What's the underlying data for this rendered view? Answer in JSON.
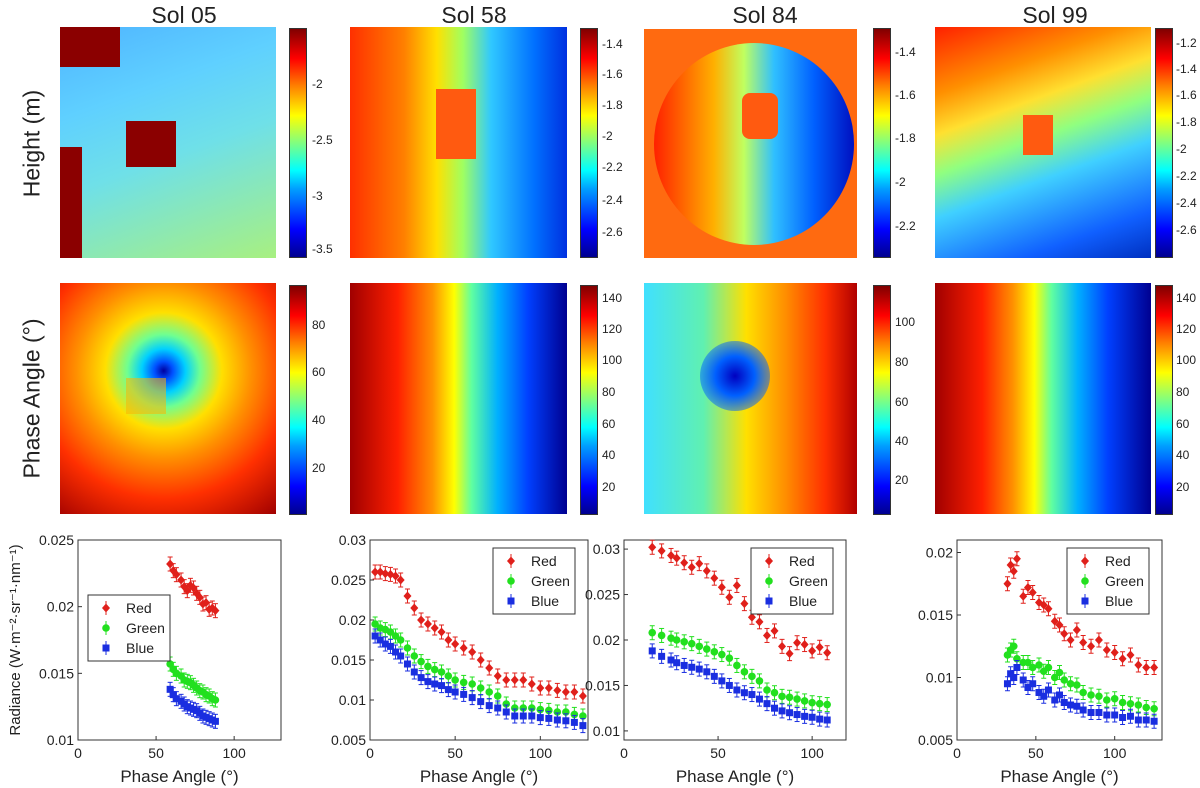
{
  "columns": [
    {
      "title": "Sol 05",
      "height_ticks": [
        "-2",
        "-2.5",
        "-3",
        "-3.5"
      ],
      "phase_ticks": [
        "80",
        "60",
        "40",
        "20"
      ]
    },
    {
      "title": "Sol 58",
      "height_ticks": [
        "-1.4",
        "-1.6",
        "-1.8",
        "-2",
        "-2.2",
        "-2.4",
        "-2.6"
      ],
      "phase_ticks": [
        "140",
        "120",
        "100",
        "80",
        "60",
        "40",
        "20"
      ]
    },
    {
      "title": "Sol 84",
      "height_ticks": [
        "-1.4",
        "-1.6",
        "-1.8",
        "-2",
        "-2.2"
      ],
      "phase_ticks": [
        "100",
        "80",
        "60",
        "40",
        "20"
      ]
    },
    {
      "title": "Sol 99",
      "height_ticks": [
        "-1.2",
        "-1.4",
        "-1.6",
        "-1.8",
        "-2",
        "-2.2",
        "-2.4",
        "-2.6"
      ],
      "phase_ticks": [
        "140",
        "120",
        "100",
        "80",
        "60",
        "40",
        "20"
      ]
    }
  ],
  "row_labels": {
    "height": "Height (m)",
    "phase": "Phase Angle (°)"
  },
  "colors": {
    "red": "#e0201b",
    "green": "#22e01e",
    "blue": "#1a2ee0"
  },
  "chart_data": [
    {
      "type": "scatter",
      "title": "Sol 05",
      "xlabel": "Phase Angle (°)",
      "ylabel": "Radiance (W·m⁻²·sr⁻¹·nm⁻¹)",
      "xlim": [
        0,
        130
      ],
      "ylim": [
        0.01,
        0.025
      ],
      "xticks": [
        0,
        50,
        100
      ],
      "yticks": [
        0.01,
        0.015,
        0.02,
        0.025
      ],
      "ytick_labels": [
        "0.01",
        "0.015",
        "0.02",
        "0.025"
      ],
      "legend_pos": "middle-left",
      "series": [
        {
          "name": "Red",
          "x": [
            59,
            61,
            63,
            66,
            68,
            70,
            72,
            74,
            76,
            78,
            80,
            82,
            84,
            86,
            88
          ],
          "y": [
            0.0232,
            0.0227,
            0.0224,
            0.022,
            0.0215,
            0.0212,
            0.0216,
            0.0214,
            0.021,
            0.0207,
            0.0202,
            0.0203,
            0.0198,
            0.0199,
            0.0197
          ]
        },
        {
          "name": "Green",
          "x": [
            59,
            61,
            63,
            66,
            68,
            70,
            72,
            74,
            76,
            78,
            80,
            82,
            84,
            86,
            88
          ],
          "y": [
            0.0157,
            0.0153,
            0.015,
            0.0148,
            0.0145,
            0.0144,
            0.0143,
            0.0141,
            0.0139,
            0.0137,
            0.0136,
            0.0134,
            0.0133,
            0.0131,
            0.013
          ]
        },
        {
          "name": "Blue",
          "x": [
            59,
            61,
            63,
            66,
            68,
            70,
            72,
            74,
            76,
            78,
            80,
            82,
            84,
            86,
            88
          ],
          "y": [
            0.0138,
            0.0134,
            0.0131,
            0.0129,
            0.0127,
            0.0125,
            0.0124,
            0.0123,
            0.0122,
            0.012,
            0.0118,
            0.0117,
            0.0116,
            0.0115,
            0.0114
          ]
        }
      ]
    },
    {
      "type": "scatter",
      "title": "Sol 58",
      "xlabel": "Phase Angle (°)",
      "ylabel": "",
      "xlim": [
        0,
        128
      ],
      "ylim": [
        0.005,
        0.03
      ],
      "xticks": [
        0,
        50,
        100
      ],
      "yticks": [
        0.005,
        0.01,
        0.015,
        0.02,
        0.025,
        0.03
      ],
      "ytick_labels": [
        "0.005",
        "0.01",
        "0.015",
        "0.02",
        "0.025",
        "0.03"
      ],
      "legend_pos": "top-right",
      "series": [
        {
          "name": "Red",
          "x": [
            3,
            6,
            9,
            12,
            15,
            18,
            22,
            26,
            30,
            34,
            38,
            42,
            46,
            50,
            55,
            60,
            65,
            70,
            75,
            80,
            85,
            90,
            95,
            100,
            105,
            110,
            115,
            120,
            125
          ],
          "y": [
            0.026,
            0.026,
            0.0258,
            0.0257,
            0.0255,
            0.025,
            0.023,
            0.0215,
            0.02,
            0.0195,
            0.019,
            0.0185,
            0.0175,
            0.017,
            0.0165,
            0.016,
            0.015,
            0.014,
            0.013,
            0.0125,
            0.0125,
            0.0125,
            0.012,
            0.0115,
            0.0115,
            0.0112,
            0.011,
            0.011,
            0.0105
          ]
        },
        {
          "name": "Green",
          "x": [
            3,
            6,
            9,
            12,
            15,
            18,
            22,
            26,
            30,
            34,
            38,
            42,
            46,
            50,
            55,
            60,
            65,
            70,
            75,
            80,
            85,
            90,
            95,
            100,
            105,
            110,
            115,
            120,
            125
          ],
          "y": [
            0.0195,
            0.019,
            0.0188,
            0.0185,
            0.018,
            0.0175,
            0.0165,
            0.0155,
            0.0148,
            0.0142,
            0.0138,
            0.0135,
            0.013,
            0.0125,
            0.0122,
            0.012,
            0.0115,
            0.011,
            0.0105,
            0.0095,
            0.009,
            0.009,
            0.009,
            0.0088,
            0.0087,
            0.0085,
            0.0085,
            0.0082,
            0.008
          ]
        },
        {
          "name": "Blue",
          "x": [
            3,
            6,
            9,
            12,
            15,
            18,
            22,
            26,
            30,
            34,
            38,
            42,
            46,
            50,
            55,
            60,
            65,
            70,
            75,
            80,
            85,
            90,
            95,
            100,
            105,
            110,
            115,
            120,
            125
          ],
          "y": [
            0.018,
            0.0175,
            0.017,
            0.0167,
            0.016,
            0.0155,
            0.0145,
            0.0135,
            0.0128,
            0.0123,
            0.012,
            0.0118,
            0.0113,
            0.011,
            0.0107,
            0.0103,
            0.0098,
            0.0093,
            0.009,
            0.0085,
            0.008,
            0.008,
            0.008,
            0.0078,
            0.0077,
            0.0075,
            0.0074,
            0.0072,
            0.0068
          ]
        }
      ]
    },
    {
      "type": "scatter",
      "title": "Sol 84",
      "xlabel": "Phase Angle (°)",
      "ylabel": "",
      "xlim": [
        0,
        118
      ],
      "ylim": [
        0.009,
        0.031
      ],
      "xticks": [
        0,
        50,
        100
      ],
      "yticks": [
        0.01,
        0.015,
        0.02,
        0.025,
        0.03
      ],
      "ytick_labels": [
        "0.01",
        "0.015",
        "0.02",
        "0.025",
        "0.03"
      ],
      "legend_pos": "top-right",
      "series": [
        {
          "name": "Red",
          "x": [
            15,
            20,
            25,
            28,
            32,
            36,
            40,
            44,
            48,
            52,
            56,
            60,
            64,
            68,
            72,
            76,
            80,
            84,
            88,
            92,
            96,
            100,
            104,
            108
          ],
          "y": [
            0.0302,
            0.0298,
            0.0293,
            0.029,
            0.0285,
            0.028,
            0.0284,
            0.0276,
            0.0268,
            0.0258,
            0.0247,
            0.026,
            0.024,
            0.0225,
            0.022,
            0.0205,
            0.021,
            0.0193,
            0.0185,
            0.0197,
            0.0195,
            0.0188,
            0.0192,
            0.0186
          ]
        },
        {
          "name": "Green",
          "x": [
            15,
            20,
            25,
            28,
            32,
            36,
            40,
            44,
            48,
            52,
            56,
            60,
            64,
            68,
            72,
            76,
            80,
            84,
            88,
            92,
            96,
            100,
            104,
            108
          ],
          "y": [
            0.0208,
            0.0205,
            0.0202,
            0.02,
            0.0198,
            0.0196,
            0.0193,
            0.019,
            0.0187,
            0.0184,
            0.018,
            0.0172,
            0.0165,
            0.016,
            0.0155,
            0.0145,
            0.0142,
            0.0138,
            0.0137,
            0.0135,
            0.0133,
            0.0131,
            0.013,
            0.0129
          ]
        },
        {
          "name": "Blue",
          "x": [
            15,
            20,
            25,
            28,
            32,
            36,
            40,
            44,
            48,
            52,
            56,
            60,
            64,
            68,
            72,
            76,
            80,
            84,
            88,
            92,
            96,
            100,
            104,
            108
          ],
          "y": [
            0.0188,
            0.0182,
            0.0178,
            0.0175,
            0.0172,
            0.017,
            0.0168,
            0.0165,
            0.016,
            0.0155,
            0.015,
            0.0145,
            0.0142,
            0.014,
            0.0135,
            0.013,
            0.0125,
            0.0122,
            0.012,
            0.0118,
            0.0116,
            0.0115,
            0.0113,
            0.0112
          ]
        }
      ]
    },
    {
      "type": "scatter",
      "title": "Sol 99",
      "xlabel": "Phase Angle (°)",
      "ylabel": "",
      "xlim": [
        0,
        130
      ],
      "ylim": [
        0.005,
        0.021
      ],
      "xticks": [
        0,
        50,
        100
      ],
      "yticks": [
        0.005,
        0.01,
        0.015,
        0.02
      ],
      "ytick_labels": [
        "0.005",
        "0.01",
        "0.015",
        "0.02"
      ],
      "legend_pos": "top-right",
      "series": [
        {
          "name": "Red",
          "x": [
            32,
            34,
            36,
            38,
            42,
            45,
            48,
            52,
            55,
            58,
            62,
            65,
            68,
            72,
            76,
            80,
            85,
            90,
            95,
            100,
            105,
            110,
            115,
            120,
            125
          ],
          "y": [
            0.0175,
            0.019,
            0.0185,
            0.0195,
            0.0165,
            0.0172,
            0.0168,
            0.016,
            0.0158,
            0.0155,
            0.0145,
            0.0142,
            0.0135,
            0.013,
            0.0138,
            0.0128,
            0.0125,
            0.013,
            0.0122,
            0.012,
            0.0115,
            0.0118,
            0.011,
            0.0108,
            0.0108
          ]
        },
        {
          "name": "Green",
          "x": [
            32,
            34,
            36,
            38,
            42,
            45,
            48,
            52,
            55,
            58,
            62,
            65,
            68,
            72,
            76,
            80,
            85,
            90,
            95,
            100,
            105,
            110,
            115,
            120,
            125
          ],
          "y": [
            0.0118,
            0.0122,
            0.0125,
            0.0115,
            0.0112,
            0.0112,
            0.0108,
            0.011,
            0.0105,
            0.0108,
            0.01,
            0.0104,
            0.0098,
            0.0095,
            0.0094,
            0.0088,
            0.0086,
            0.0085,
            0.0082,
            0.0083,
            0.008,
            0.0079,
            0.0078,
            0.0076,
            0.0075
          ]
        },
        {
          "name": "Blue",
          "x": [
            32,
            34,
            36,
            38,
            42,
            45,
            48,
            52,
            55,
            58,
            62,
            65,
            68,
            72,
            76,
            80,
            85,
            90,
            95,
            100,
            105,
            110,
            115,
            120,
            125
          ],
          "y": [
            0.0095,
            0.0103,
            0.01,
            0.0108,
            0.0098,
            0.0092,
            0.0095,
            0.0088,
            0.0085,
            0.009,
            0.0082,
            0.0086,
            0.008,
            0.0078,
            0.0077,
            0.0074,
            0.0072,
            0.0072,
            0.007,
            0.007,
            0.0068,
            0.0069,
            0.0066,
            0.0066,
            0.0065
          ]
        }
      ]
    }
  ]
}
